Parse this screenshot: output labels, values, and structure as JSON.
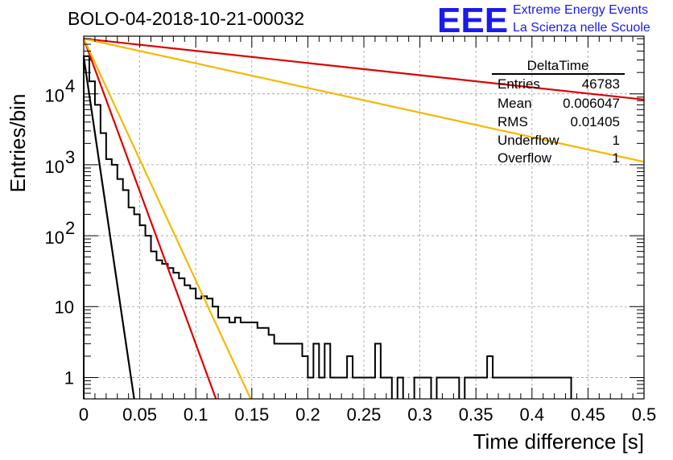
{
  "run_title": "BOLO-04-2018-10-21-00032",
  "logo": {
    "letters": "EEE",
    "line1": "Extreme Energy Events",
    "line2": "La Scienza nelle Scuole"
  },
  "stats": {
    "title": "DeltaTime",
    "rows": [
      {
        "label": "Entries",
        "value": "46783"
      },
      {
        "label": "Mean",
        "value": "0.006047"
      },
      {
        "label": "RMS",
        "value": "0.01405"
      },
      {
        "label": "Underflow",
        "value": "1"
      },
      {
        "label": "Overflow",
        "value": "1"
      }
    ]
  },
  "chart_data": {
    "type": "line",
    "xlabel": "Time difference [s]",
    "ylabel": "Entries/bin",
    "xlim": [
      0,
      0.5
    ],
    "ylim": [
      0.5,
      65000
    ],
    "yscale": "log",
    "grid": true,
    "xticks": [
      "0",
      "0.05",
      "0.1",
      "0.15",
      "0.2",
      "0.25",
      "0.3",
      "0.35",
      "0.4",
      "0.45",
      "0.5"
    ],
    "yticks": [
      {
        "value": 1,
        "label": "1"
      },
      {
        "value": 10,
        "label": "10"
      },
      {
        "value": 100,
        "label": "10",
        "exp": "2"
      },
      {
        "value": 1000,
        "label": "10",
        "exp": "3"
      },
      {
        "value": 10000,
        "label": "10",
        "exp": "4"
      }
    ],
    "histogram": {
      "bin_width": 0.005,
      "color": "#000000",
      "edges": [
        [
          0.0,
          34000
        ],
        [
          0.005,
          15000
        ],
        [
          0.01,
          7000
        ],
        [
          0.015,
          2800
        ],
        [
          0.02,
          1200
        ],
        [
          0.025,
          1000
        ],
        [
          0.03,
          630
        ],
        [
          0.035,
          440
        ],
        [
          0.04,
          250
        ],
        [
          0.045,
          200
        ],
        [
          0.05,
          140
        ],
        [
          0.055,
          100
        ],
        [
          0.06,
          60
        ],
        [
          0.065,
          45
        ],
        [
          0.07,
          40
        ],
        [
          0.075,
          35
        ],
        [
          0.08,
          30
        ],
        [
          0.085,
          25
        ],
        [
          0.09,
          20
        ],
        [
          0.095,
          18
        ],
        [
          0.1,
          13
        ],
        [
          0.105,
          14
        ],
        [
          0.11,
          13
        ],
        [
          0.115,
          10
        ],
        [
          0.12,
          7
        ],
        [
          0.125,
          7
        ],
        [
          0.13,
          6
        ],
        [
          0.135,
          7
        ],
        [
          0.14,
          6
        ],
        [
          0.145,
          6
        ],
        [
          0.15,
          6
        ],
        [
          0.155,
          5
        ],
        [
          0.16,
          5
        ],
        [
          0.165,
          4
        ],
        [
          0.17,
          3
        ],
        [
          0.175,
          3
        ],
        [
          0.18,
          3
        ],
        [
          0.185,
          3
        ],
        [
          0.19,
          3
        ],
        [
          0.195,
          2
        ],
        [
          0.2,
          1
        ],
        [
          0.205,
          3
        ],
        [
          0.21,
          1
        ],
        [
          0.215,
          3
        ],
        [
          0.22,
          1
        ],
        [
          0.225,
          1
        ],
        [
          0.23,
          1
        ],
        [
          0.235,
          2
        ],
        [
          0.24,
          1
        ],
        [
          0.245,
          1
        ],
        [
          0.25,
          1
        ],
        [
          0.255,
          1
        ],
        [
          0.26,
          3
        ],
        [
          0.265,
          1
        ],
        [
          0.27,
          1
        ],
        [
          0.28,
          1
        ],
        [
          0.295,
          1
        ],
        [
          0.3,
          1
        ],
        [
          0.305,
          1
        ],
        [
          0.315,
          1
        ],
        [
          0.32,
          1
        ],
        [
          0.325,
          1
        ],
        [
          0.33,
          1
        ],
        [
          0.34,
          1
        ],
        [
          0.345,
          1
        ],
        [
          0.35,
          1
        ],
        [
          0.355,
          1
        ],
        [
          0.36,
          2
        ],
        [
          0.365,
          1
        ],
        [
          0.37,
          1
        ],
        [
          0.375,
          1
        ],
        [
          0.38,
          1
        ],
        [
          0.385,
          1
        ],
        [
          0.39,
          1
        ],
        [
          0.395,
          1
        ],
        [
          0.4,
          1
        ],
        [
          0.405,
          1
        ],
        [
          0.41,
          1
        ],
        [
          0.415,
          1
        ],
        [
          0.42,
          1
        ],
        [
          0.425,
          1
        ],
        [
          0.43,
          1
        ]
      ]
    },
    "fits": [
      {
        "color": "#000000",
        "x": [
          0.0,
          0.045
        ],
        "y": [
          33000,
          0.5
        ]
      },
      {
        "color": "#dd0000",
        "x": [
          0.0,
          0.118
        ],
        "y": [
          60000,
          0.5
        ]
      },
      {
        "color": "#f5b800",
        "x": [
          0.0,
          0.149
        ],
        "y": [
          60000,
          0.5
        ]
      },
      {
        "color": "#dd0000",
        "x": [
          0.0,
          0.5
        ],
        "y": [
          60000,
          8300
        ]
      },
      {
        "color": "#f5b800",
        "x": [
          0.0,
          0.5
        ],
        "y": [
          60000,
          1100
        ]
      }
    ]
  }
}
